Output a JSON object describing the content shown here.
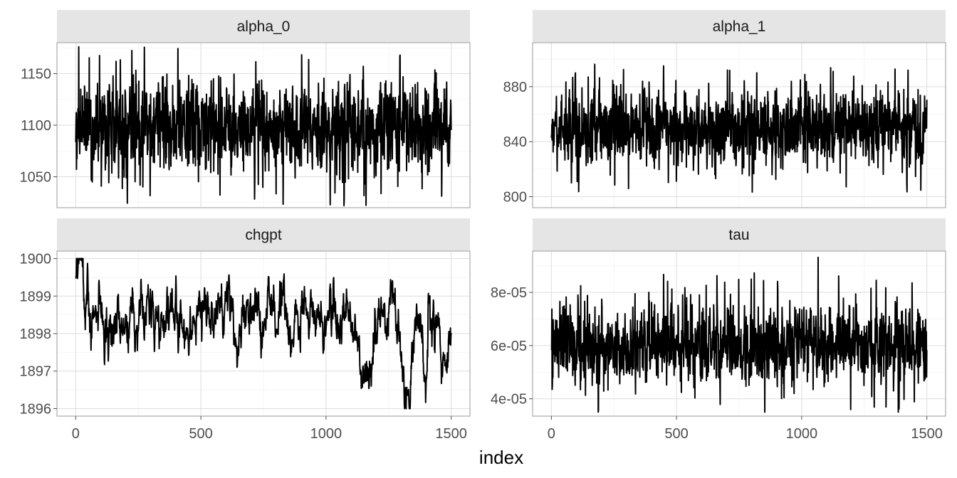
{
  "chart_data": {
    "type": "line",
    "xlabel": "index",
    "xlim": [
      0,
      1500
    ],
    "x_ticks": [
      0,
      500,
      1000,
      1500
    ],
    "x_tick_labels": [
      "0",
      "500",
      "1000",
      "1500"
    ],
    "panels": [
      {
        "name": "alpha_0",
        "ylim": [
          1020,
          1180
        ],
        "y_ticks": [
          1050,
          1100,
          1150
        ],
        "y_tick_labels": [
          "1050",
          "1100",
          "1150"
        ],
        "trace": {
          "n": 1500,
          "mean": 1098,
          "sd": 22,
          "min": 1022,
          "max": 1176,
          "ar": 0.15,
          "spike_prob": 0.02
        }
      },
      {
        "name": "alpha_1",
        "ylim": [
          792,
          912
        ],
        "y_ticks": [
          800,
          840,
          880
        ],
        "y_tick_labels": [
          "800",
          "840",
          "880"
        ],
        "trace": {
          "n": 1500,
          "mean": 850,
          "sd": 13,
          "min": 797,
          "max": 908,
          "ar": 0.15,
          "spike_prob": 0.02
        }
      },
      {
        "name": "chgpt",
        "ylim": [
          1895.8,
          1900.2
        ],
        "y_ticks": [
          1896,
          1897,
          1898,
          1899,
          1900
        ],
        "y_tick_labels": [
          "1896",
          "1897",
          "1898",
          "1899",
          "1900"
        ],
        "trace": {
          "n": 1500,
          "mean": 1898.5,
          "sd": 0.25,
          "min": 1896,
          "max": 1900,
          "ar": 0.9,
          "spike_prob": 0.0
        }
      },
      {
        "name": "tau",
        "ylim": [
          3.35e-05,
          9.55e-05
        ],
        "y_ticks": [
          4e-05,
          6e-05,
          8e-05
        ],
        "y_tick_labels": [
          "4e-05",
          "6e-05",
          "8e-05"
        ],
        "trace": {
          "n": 1500,
          "mean": 6e-05,
          "sd": 7.5e-06,
          "min": 3.5e-05,
          "max": 9.4e-05,
          "ar": 0.15,
          "spike_prob": 0.015
        }
      }
    ]
  }
}
